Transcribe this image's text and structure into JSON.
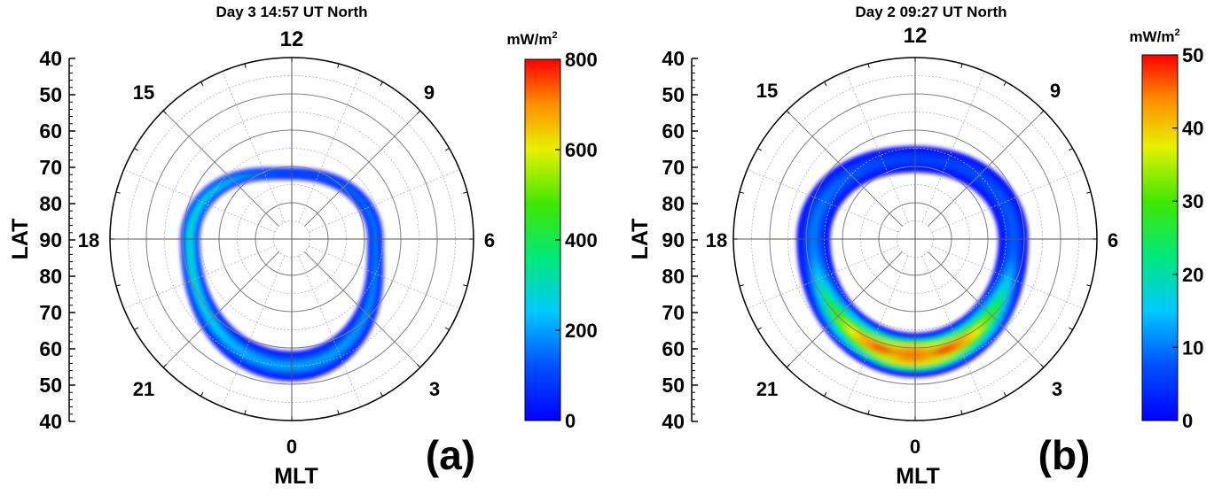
{
  "chart_data": [
    {
      "type": "heatmap",
      "title": "Day 3 14:57 UT North",
      "panel_label": "(a)",
      "xlabel": "MLT",
      "ylabel": "LAT",
      "mlt_labels": [
        "12",
        "9",
        "6",
        "3",
        "0",
        "21",
        "18",
        "15"
      ],
      "lat_ticks": [
        "40",
        "50",
        "60",
        "70",
        "80",
        "90",
        "80",
        "70",
        "60",
        "50",
        "40"
      ],
      "lat_range": [
        40,
        90
      ],
      "colorbar": {
        "unit_base": "mW/m",
        "unit_exp": "2",
        "ticks": [
          "0",
          "200",
          "400",
          "600",
          "800"
        ],
        "range": [
          0,
          800
        ]
      },
      "oval": {
        "center_mlt": 0,
        "description_values": [
          {
            "mlt": 0,
            "lat_center": 55,
            "width_deg": 8,
            "peak": 200
          },
          {
            "mlt": 6,
            "lat_center": 67,
            "width_deg": 4,
            "peak": 160
          },
          {
            "mlt": 12,
            "lat_center": 72,
            "width_deg": 3,
            "peak": 120
          },
          {
            "mlt": 18,
            "lat_center": 62,
            "width_deg": 5,
            "peak": 300
          }
        ]
      }
    },
    {
      "type": "heatmap",
      "title": "Day 2  09:27 UT North",
      "panel_label": "(b)",
      "xlabel": "MLT",
      "ylabel": "LAT",
      "mlt_labels": [
        "12",
        "9",
        "6",
        "3",
        "0",
        "21",
        "18",
        "15"
      ],
      "lat_ticks": [
        "40",
        "50",
        "60",
        "70",
        "80",
        "90",
        "80",
        "70",
        "60",
        "50",
        "40"
      ],
      "lat_range": [
        40,
        90
      ],
      "colorbar": {
        "unit_base": "mW/m",
        "unit_exp": "2",
        "ticks": [
          "0",
          "10",
          "20",
          "30",
          "40",
          "50"
        ],
        "range": [
          0,
          50
        ]
      },
      "oval": {
        "description_values": [
          {
            "mlt": 0,
            "lat_center": 58,
            "width_deg": 12,
            "peak": 50
          },
          {
            "mlt": 6,
            "lat_center": 63,
            "width_deg": 8,
            "peak": 8
          },
          {
            "mlt": 12,
            "lat_center": 68,
            "width_deg": 7,
            "peak": 6
          },
          {
            "mlt": 18,
            "lat_center": 62,
            "width_deg": 9,
            "peak": 10
          }
        ]
      }
    }
  ]
}
